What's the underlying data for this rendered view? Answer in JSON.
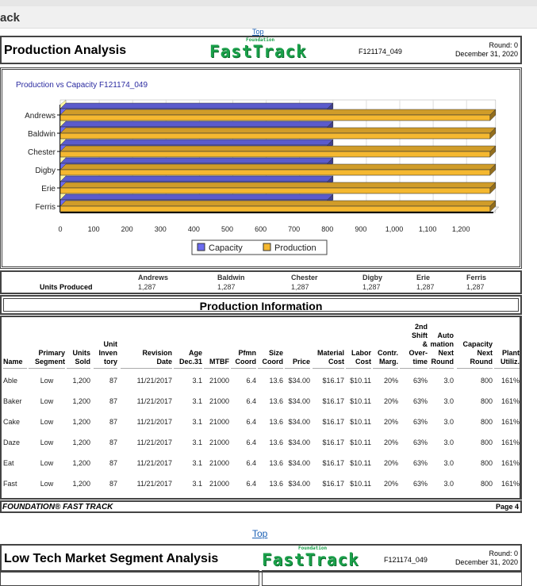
{
  "browser": {
    "tab_title": "ack",
    "top_link": "Top"
  },
  "header1": {
    "title": "Production Analysis",
    "logo_small": "Foundation",
    "logo": "FastTrack",
    "code": "F121174_049",
    "round": "Round: 0",
    "date": "December 31, 2020"
  },
  "chart_data": {
    "type": "bar",
    "orientation": "horizontal",
    "title": "Production vs Capacity F121174_049",
    "categories": [
      "Andrews",
      "Baldwin",
      "Chester",
      "Digby",
      "Erie",
      "Ferris"
    ],
    "series": [
      {
        "name": "Capacity",
        "values": [
          800,
          800,
          800,
          800,
          800,
          800
        ],
        "color": "#6b6bf0"
      },
      {
        "name": "Production",
        "values": [
          1287,
          1287,
          1287,
          1287,
          1287,
          1287
        ],
        "color": "#f5b830"
      }
    ],
    "xlim": [
      0,
      1200
    ],
    "xticks": [
      "0",
      "100",
      "200",
      "300",
      "400",
      "500",
      "600",
      "700",
      "800",
      "900",
      "1,000",
      "1,100",
      "1,200"
    ],
    "grid": true,
    "legend": "bottom"
  },
  "units_produced": {
    "label": "Units Produced",
    "teams": [
      {
        "name": "Andrews",
        "value": "1,287"
      },
      {
        "name": "Baldwin",
        "value": "1,287"
      },
      {
        "name": "Chester",
        "value": "1,287"
      },
      {
        "name": "Digby",
        "value": "1,287"
      },
      {
        "name": "Erie",
        "value": "1,287"
      },
      {
        "name": "Ferris",
        "value": "1,287"
      }
    ]
  },
  "production_info": {
    "title": "Production Information",
    "columns": [
      "Name",
      "Primary Segment",
      "Units Sold",
      "Unit Inven tory",
      "Revision Date",
      "Age Dec.31",
      "MTBF",
      "Pfmn Coord",
      "Size Coord",
      "Price",
      "Material Cost",
      "Labor Cost",
      "Contr. Marg.",
      "2nd Shift & Over- time",
      "Auto mation Next Round",
      "Capacity Next Round",
      "Plant Utiliz."
    ],
    "rows": [
      [
        "Able",
        "Low",
        "1,200",
        "87",
        "11/21/2017",
        "3.1",
        "21000",
        "6.4",
        "13.6",
        "$34.00",
        "$16.17",
        "$10.11",
        "20%",
        "63%",
        "3.0",
        "800",
        "161%"
      ],
      [
        "Baker",
        "Low",
        "1,200",
        "87",
        "11/21/2017",
        "3.1",
        "21000",
        "6.4",
        "13.6",
        "$34.00",
        "$16.17",
        "$10.11",
        "20%",
        "63%",
        "3.0",
        "800",
        "161%"
      ],
      [
        "Cake",
        "Low",
        "1,200",
        "87",
        "11/21/2017",
        "3.1",
        "21000",
        "6.4",
        "13.6",
        "$34.00",
        "$16.17",
        "$10.11",
        "20%",
        "63%",
        "3.0",
        "800",
        "161%"
      ],
      [
        "Daze",
        "Low",
        "1,200",
        "87",
        "11/21/2017",
        "3.1",
        "21000",
        "6.4",
        "13.6",
        "$34.00",
        "$16.17",
        "$10.11",
        "20%",
        "63%",
        "3.0",
        "800",
        "161%"
      ],
      [
        "Eat",
        "Low",
        "1,200",
        "87",
        "11/21/2017",
        "3.1",
        "21000",
        "6.4",
        "13.6",
        "$34.00",
        "$16.17",
        "$10.11",
        "20%",
        "63%",
        "3.0",
        "800",
        "161%"
      ],
      [
        "Fast",
        "Low",
        "1,200",
        "87",
        "11/21/2017",
        "3.1",
        "21000",
        "6.4",
        "13.6",
        "$34.00",
        "$16.17",
        "$10.11",
        "20%",
        "63%",
        "3.0",
        "800",
        "161%"
      ]
    ]
  },
  "footer": {
    "left": "FOUNDATION® FAST TRACK",
    "right": "Page 4"
  },
  "top_link2": "Top",
  "header2": {
    "title": "Low Tech Market Segment Analysis",
    "logo_small": "Foundation",
    "logo": "FastTrack",
    "code": "F121174_049",
    "round": "Round: 0",
    "date": "December 31, 2020"
  }
}
